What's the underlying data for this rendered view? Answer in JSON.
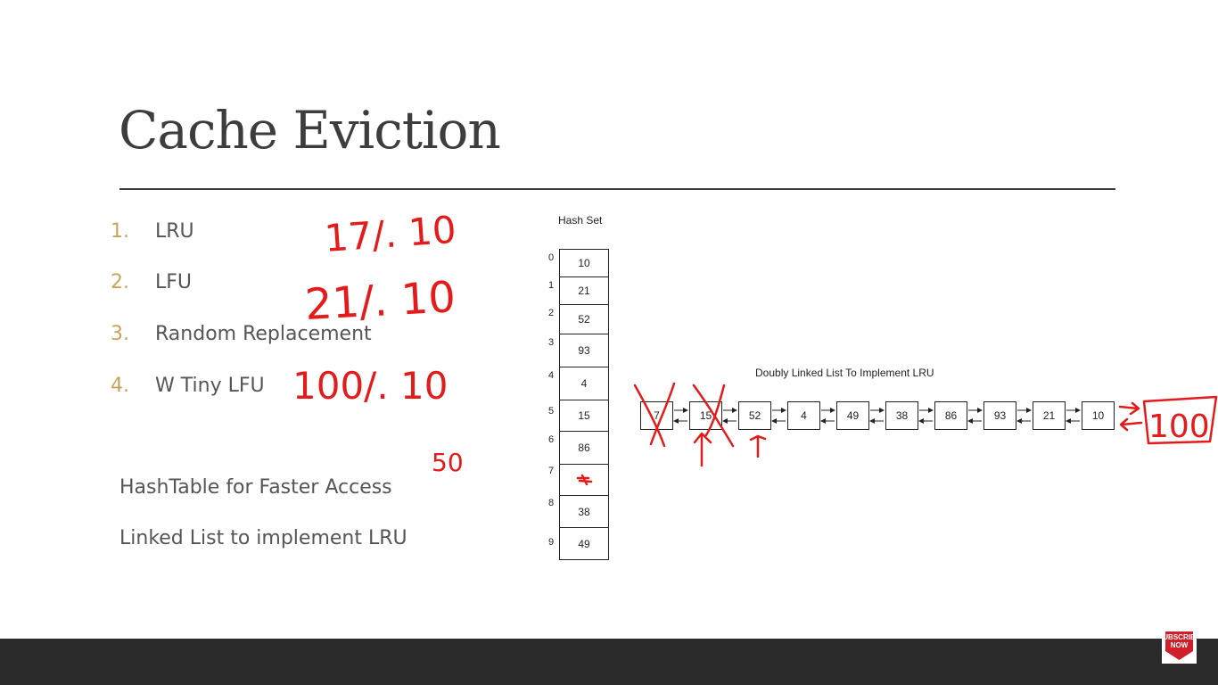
{
  "slide": {
    "title": "Cache Eviction"
  },
  "policies": [
    {
      "num": "1.",
      "label": "LRU"
    },
    {
      "num": "2.",
      "label": "LFU"
    },
    {
      "num": "3.",
      "label": "Random Replacement"
    },
    {
      "num": "4.",
      "label": "W Tiny LFU"
    }
  ],
  "notes": [
    "HashTable for Faster Access",
    "Linked List to implement LRU"
  ],
  "hash_set": {
    "title": "Hash Set",
    "cells": [
      {
        "index": "0",
        "value": "10"
      },
      {
        "index": "1",
        "value": "21"
      },
      {
        "index": "2",
        "value": "52"
      },
      {
        "index": "3",
        "value": "93"
      },
      {
        "index": "4",
        "value": "4"
      },
      {
        "index": "5",
        "value": "15"
      },
      {
        "index": "6",
        "value": "86"
      },
      {
        "index": "7",
        "value": ""
      },
      {
        "index": "8",
        "value": "38"
      },
      {
        "index": "9",
        "value": "49"
      }
    ]
  },
  "linked_list": {
    "title": "Doubly Linked List To Implement LRU",
    "nodes": [
      "7",
      "15",
      "52",
      "4",
      "49",
      "38",
      "86",
      "93",
      "21",
      "10"
    ]
  },
  "annotations": {
    "lru_ratio": "17/. 10",
    "lfu_ratio": "21/. 10",
    "wtinylfu_ratio": "100/. 10",
    "fifty": "50",
    "new_node": "100"
  },
  "badge": {
    "top": "SUBSCRIBE",
    "main": "NOW"
  },
  "colors": {
    "ink": "#e31b1b",
    "accent_number": "#c9a35b",
    "footer": "#2b2b2b"
  }
}
